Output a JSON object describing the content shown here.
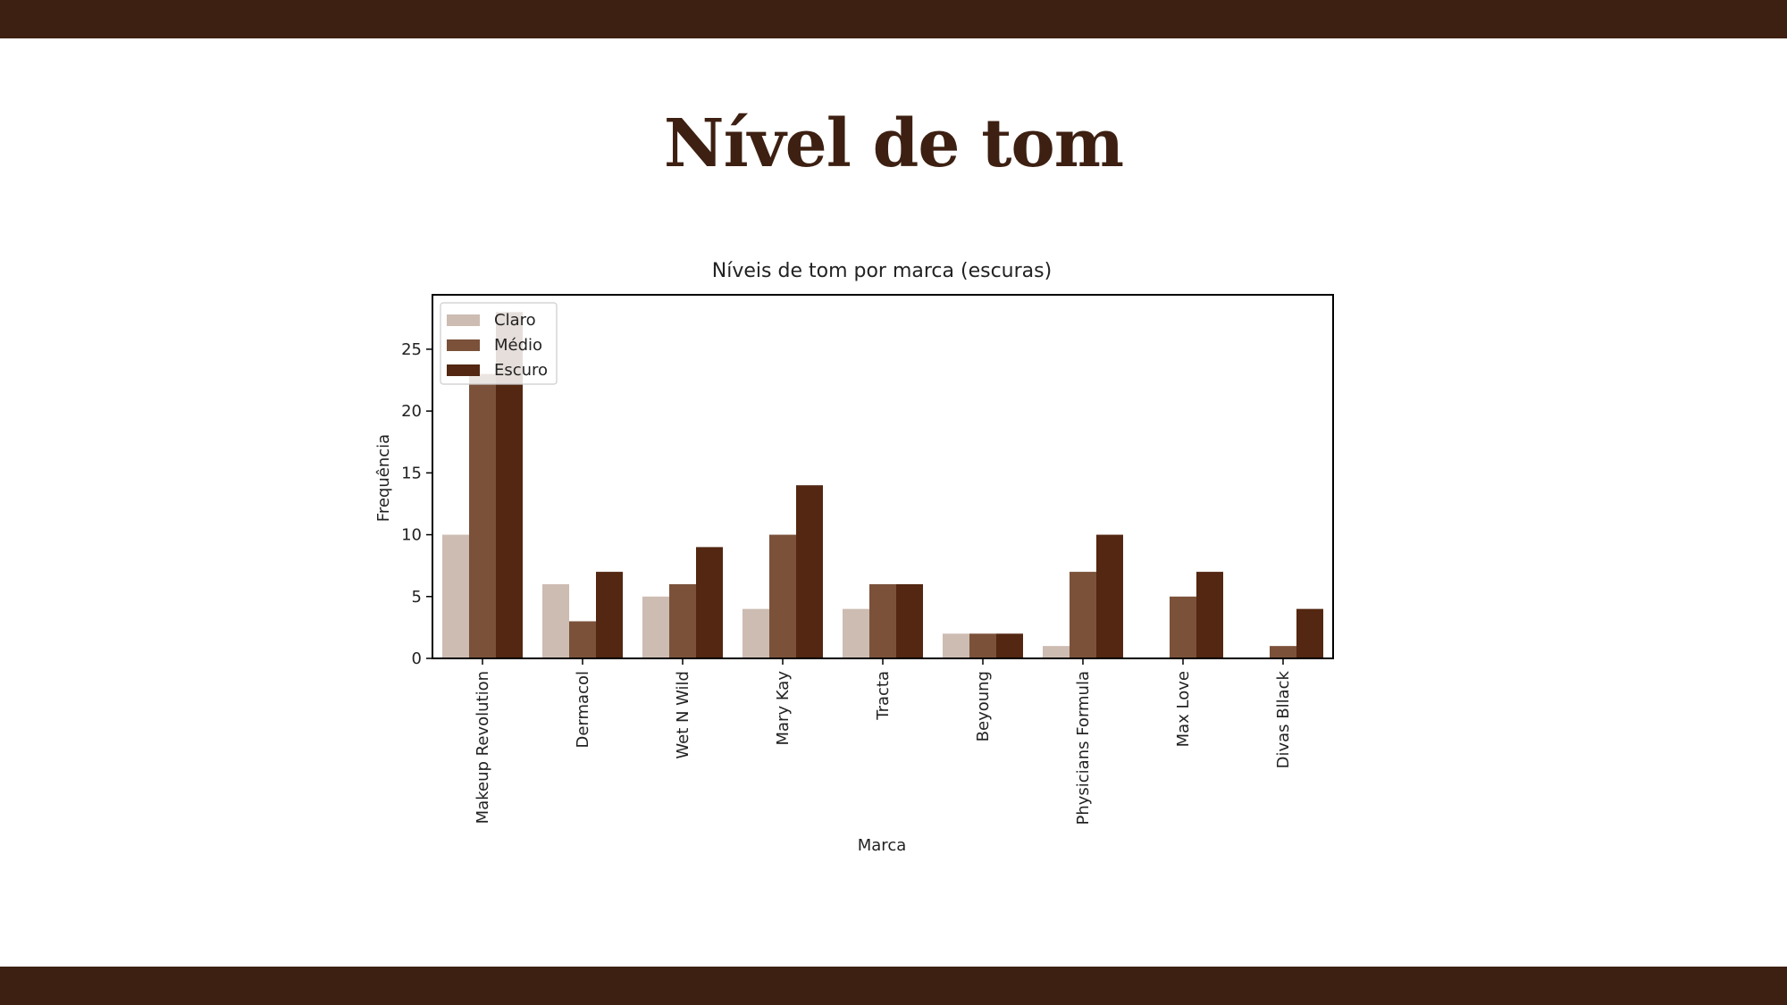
{
  "slide": {
    "title": "Nível de tom"
  },
  "colors": {
    "band": "#3d2012",
    "title": "#3d2012"
  },
  "chart_data": {
    "type": "bar",
    "title": "Níveis de tom por marca (escuras)",
    "xlabel": "Marca",
    "ylabel": "Frequência",
    "categories": [
      "Makeup Revolution",
      "Dermacol",
      "Wet N Wild",
      "Mary Kay",
      "Tracta",
      "Beyoung",
      "Physicians Formula",
      "Max Love",
      "Divas Bllack"
    ],
    "series": [
      {
        "name": "Claro",
        "color": "#cdbcb2",
        "values": [
          10,
          6,
          5,
          4,
          4,
          2,
          1,
          0,
          0
        ]
      },
      {
        "name": "Médio",
        "color": "#7b513a",
        "values": [
          23,
          3,
          6,
          10,
          6,
          2,
          7,
          5,
          1
        ]
      },
      {
        "name": "Escuro",
        "color": "#532711",
        "values": [
          28,
          7,
          9,
          14,
          6,
          2,
          10,
          7,
          4
        ]
      }
    ],
    "yticks": [
      0,
      5,
      10,
      15,
      20,
      25
    ],
    "ylim": [
      0,
      29.4
    ],
    "legend": "top-left",
    "grid": false
  }
}
